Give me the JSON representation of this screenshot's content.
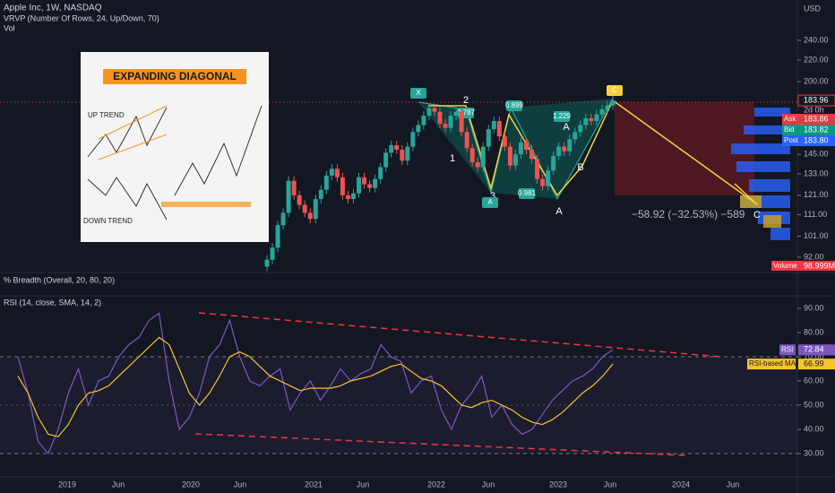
{
  "header": {
    "symbol": "Apple Inc, 1W, NASDAQ",
    "indicator1": "VRVP (Number Of Rows, 24, Up/Down, 70)",
    "indicator2": "Vol",
    "currency": "USD"
  },
  "price_axis": {
    "log": true,
    "ticks": [
      {
        "value": 240,
        "label": "240.00"
      },
      {
        "value": 220,
        "label": "220.00"
      },
      {
        "value": 200,
        "label": "200.00"
      },
      {
        "value": 145,
        "label": "145.00"
      },
      {
        "value": 133,
        "label": "133.00"
      },
      {
        "value": 121,
        "label": "121.00"
      },
      {
        "value": 111,
        "label": "111.00"
      },
      {
        "value": 101,
        "label": "101.00"
      },
      {
        "value": 92,
        "label": "92.00"
      }
    ],
    "last": {
      "value": 183.96,
      "label": "183.96"
    },
    "countdown": "2d 0h",
    "ask": {
      "name": "Ask",
      "value": 183.86,
      "label": "183.86"
    },
    "bid": {
      "name": "Bid",
      "value": 183.82,
      "label": "183.82"
    },
    "post": {
      "name": "Post",
      "value": 183.8,
      "label": "183.80"
    },
    "volume": {
      "name": "Volume",
      "label": "98.999M"
    }
  },
  "price_closes": [
    91,
    96,
    106,
    112,
    129,
    121,
    116,
    112,
    109,
    119,
    124,
    132,
    136,
    131,
    121,
    119,
    122,
    131,
    127,
    125,
    130,
    137,
    146,
    151,
    148,
    141,
    150,
    160,
    165,
    172,
    178,
    175,
    166,
    163,
    172,
    175,
    160,
    149,
    140,
    137,
    150,
    162,
    168,
    157,
    150,
    138,
    145,
    153,
    148,
    142,
    130,
    126,
    135,
    144,
    150,
    147,
    155,
    160,
    165,
    170,
    168,
    173,
    177,
    180,
    183.96
  ],
  "pattern": {
    "labels": [
      "X",
      "2",
      "0.787",
      "0.899",
      "1.229",
      "0.981",
      "1",
      "3",
      "A",
      "B",
      "C",
      "A",
      "C",
      "A"
    ],
    "measure": "−58.92 (−32.53%) −589"
  },
  "inset": {
    "title": "EXPANDING DIAGONAL",
    "up": "UP TREND",
    "down": "DOWN TREND"
  },
  "breadth": {
    "title": "% Breadth (Overall, 20, 80, 20)"
  },
  "rsi": {
    "title": "RSI (14, close, SMA, 14, 2)",
    "ticks": [
      {
        "value": 90,
        "label": "90.00"
      },
      {
        "value": 80,
        "label": "80.00"
      },
      {
        "value": 70,
        "label": "70.00"
      },
      {
        "value": 60,
        "label": "60.00"
      },
      {
        "value": 50,
        "label": "50.00"
      },
      {
        "value": 40,
        "label": "40.00"
      },
      {
        "value": 30,
        "label": "30.00"
      }
    ],
    "values": [
      70,
      55,
      35,
      30,
      40,
      55,
      65,
      50,
      60,
      62,
      70,
      75,
      78,
      85,
      88,
      60,
      40,
      45,
      55,
      70,
      75,
      85,
      70,
      60,
      58,
      62,
      65,
      48,
      55,
      60,
      52,
      58,
      65,
      60,
      63,
      65,
      75,
      70,
      68,
      55,
      60,
      62,
      48,
      40,
      50,
      55,
      62,
      45,
      50,
      42,
      38,
      40,
      46,
      52,
      56,
      60,
      62,
      65,
      70,
      72.84
    ],
    "ma": [
      62,
      55,
      45,
      38,
      37,
      42,
      50,
      55,
      56,
      58,
      62,
      66,
      70,
      74,
      78,
      75,
      65,
      55,
      50,
      55,
      62,
      70,
      72,
      70,
      66,
      62,
      60,
      58,
      56,
      57,
      57,
      57,
      58,
      60,
      61,
      62,
      64,
      66,
      67,
      64,
      61,
      60,
      58,
      54,
      50,
      49,
      51,
      52,
      50,
      48,
      45,
      43,
      42,
      44,
      47,
      51,
      55,
      58,
      62,
      66.99
    ],
    "last": {
      "name": "RSI",
      "value": 72.84,
      "label": "72.84"
    },
    "ma_last": {
      "name": "RSI-based MA",
      "value": 66.99,
      "label": "66.99"
    }
  },
  "time_axis": [
    "2019",
    "Jun",
    "2020",
    "Jun",
    "2021",
    "Jun",
    "2022",
    "Jun",
    "2023",
    "Jun",
    "2024",
    "Jun"
  ]
}
